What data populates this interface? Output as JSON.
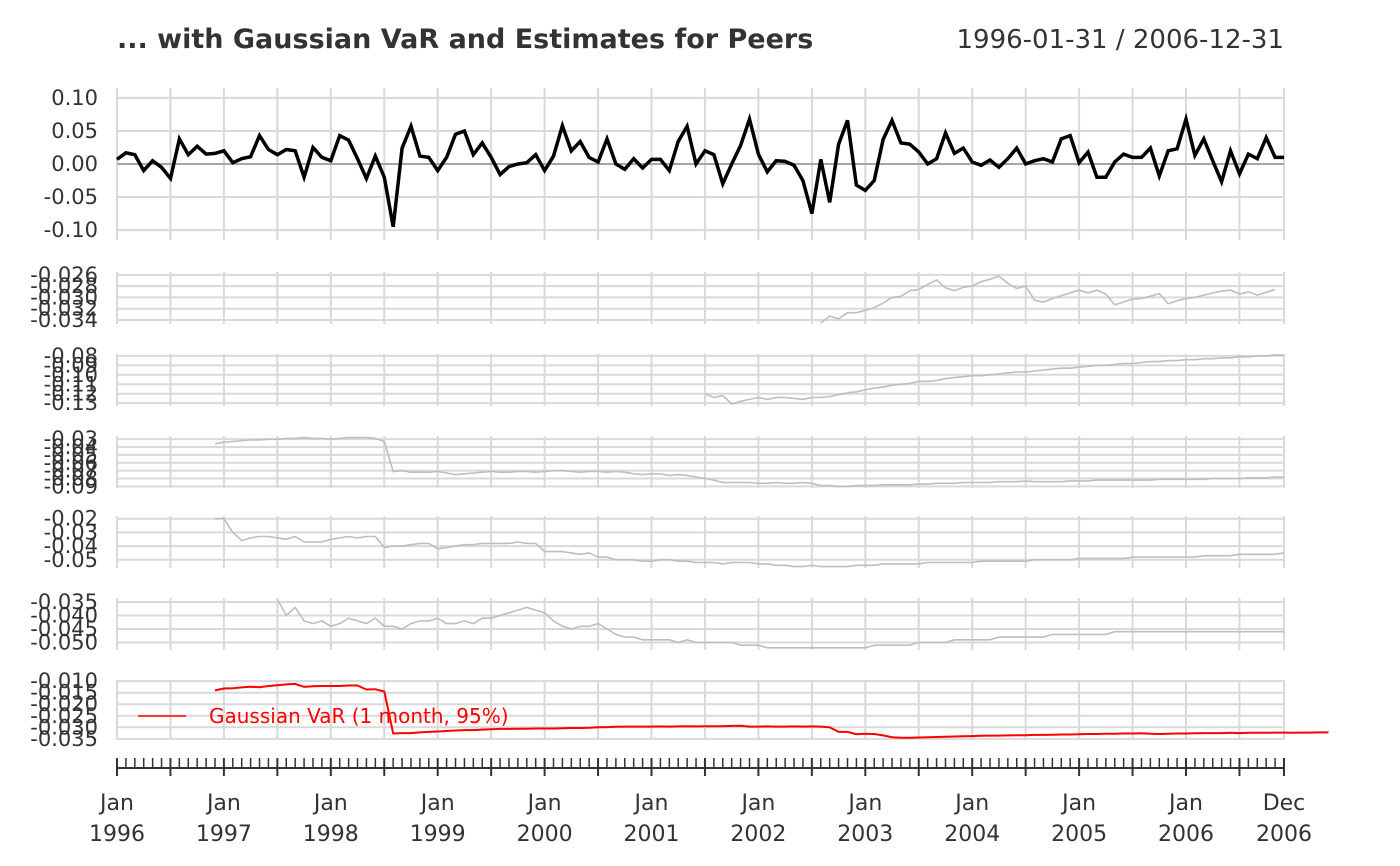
{
  "chart_data": {
    "type": "line",
    "title": "... with Gaussian VaR and Estimates for Peers",
    "date_range": "1996-01-31 / 2006-12-31",
    "x_start": "1996-01",
    "x_end": "2006-12",
    "x_tick_labels": [
      {
        "month": "Jan",
        "year": "1996",
        "index": 0
      },
      {
        "month": "Jan",
        "year": "1997",
        "index": 12
      },
      {
        "month": "Jan",
        "year": "1998",
        "index": 24
      },
      {
        "month": "Jan",
        "year": "1999",
        "index": 36
      },
      {
        "month": "Jan",
        "year": "2000",
        "index": 48
      },
      {
        "month": "Jan",
        "year": "2001",
        "index": 60
      },
      {
        "month": "Jan",
        "year": "2002",
        "index": 72
      },
      {
        "month": "Jan",
        "year": "2003",
        "index": 84
      },
      {
        "month": "Jan",
        "year": "2004",
        "index": 96
      },
      {
        "month": "Jan",
        "year": "2005",
        "index": 108
      },
      {
        "month": "Jan",
        "year": "2006",
        "index": 120
      },
      {
        "month": "Dec",
        "year": "2006",
        "index": 131
      }
    ],
    "grid": true,
    "legend": {
      "position": "left",
      "entries": [
        {
          "label": "Gaussian VaR (1 month, 95%)",
          "color": "#ff0000"
        }
      ]
    },
    "panels": [
      {
        "name": "returns",
        "color": "#000000",
        "ylim": [
          -0.115,
          0.115
        ],
        "yticks": [
          "0.10",
          "0.05",
          "0.00",
          "-0.05",
          "-0.10"
        ],
        "ytick_values": [
          0.1,
          0.05,
          0.0,
          -0.05,
          -0.1
        ],
        "zero_line": true,
        "start_index": 0,
        "values": [
          0.007,
          0.017,
          0.014,
          -0.01,
          0.005,
          -0.005,
          -0.022,
          0.038,
          0.014,
          0.027,
          0.015,
          0.016,
          0.02,
          0.002,
          0.008,
          0.011,
          0.043,
          0.022,
          0.014,
          0.022,
          0.02,
          -0.02,
          0.025,
          0.01,
          0.005,
          0.043,
          0.036,
          0.008,
          -0.022,
          0.012,
          -0.02,
          -0.095,
          0.024,
          0.057,
          0.012,
          0.01,
          -0.01,
          0.01,
          0.045,
          0.05,
          0.014,
          0.032,
          0.01,
          -0.016,
          -0.004,
          0.0,
          0.002,
          0.014,
          -0.01,
          0.012,
          0.058,
          0.02,
          0.034,
          0.01,
          0.003,
          0.038,
          0.0,
          -0.008,
          0.008,
          -0.006,
          0.007,
          0.007,
          -0.01,
          0.034,
          0.057,
          0.0,
          0.02,
          0.014,
          -0.03,
          0.0,
          0.028,
          0.068,
          0.015,
          -0.012,
          0.005,
          0.004,
          -0.002,
          -0.025,
          -0.075,
          0.007,
          -0.058,
          0.03,
          0.066,
          -0.032,
          -0.04,
          -0.025,
          0.037,
          0.066,
          0.032,
          0.03,
          0.018,
          0.0,
          0.008,
          0.047,
          0.016,
          0.024,
          0.003,
          -0.002,
          0.006,
          -0.005,
          0.008,
          0.024,
          0.0,
          0.005,
          0.008,
          0.003,
          0.038,
          0.043,
          0.002,
          0.018,
          -0.02,
          -0.02,
          0.003,
          0.015,
          0.01,
          0.01,
          0.024,
          -0.018,
          0.02,
          0.023,
          0.068,
          0.013,
          0.038,
          0.005,
          -0.027,
          0.02,
          -0.015,
          0.015,
          0.008,
          0.04,
          0.01,
          0.01
        ]
      },
      {
        "name": "peer-1",
        "color": "#bebebe",
        "ylim": [
          -0.0347,
          -0.0255
        ],
        "yticks": [
          "-0.026",
          "-0.028",
          "-0.030",
          "-0.032",
          "-0.034"
        ],
        "ytick_values": [
          -0.026,
          -0.028,
          -0.03,
          -0.032,
          -0.034
        ],
        "start_index": 79,
        "values": [
          -0.0345,
          -0.0333,
          -0.0338,
          -0.0327,
          -0.0327,
          -0.0323,
          -0.0318,
          -0.031,
          -0.03,
          -0.0298,
          -0.0288,
          -0.0286,
          -0.0277,
          -0.0269,
          -0.0283,
          -0.0288,
          -0.0282,
          -0.028,
          -0.0272,
          -0.0268,
          -0.0262,
          -0.0275,
          -0.0284,
          -0.028,
          -0.0305,
          -0.0308,
          -0.0302,
          -0.0297,
          -0.0292,
          -0.0287,
          -0.0292,
          -0.0287,
          -0.0294,
          -0.0313,
          -0.0308,
          -0.0303,
          -0.0302,
          -0.0298,
          -0.0293,
          -0.0311,
          -0.0306,
          -0.0302,
          -0.03,
          -0.0296,
          -0.0292,
          -0.0289,
          -0.0287,
          -0.0294,
          -0.029,
          -0.0296,
          -0.0291,
          -0.0286
        ]
      },
      {
        "name": "peer-2",
        "color": "#bebebe",
        "ylim": [
          -0.133,
          -0.078
        ],
        "yticks": [
          "-0.08",
          "-0.09",
          "-0.10",
          "-0.11",
          "-0.12",
          "-0.13"
        ],
        "ytick_values": [
          -0.08,
          -0.09,
          -0.1,
          -0.11,
          -0.12,
          -0.13
        ],
        "start_index": 66,
        "values": [
          -0.12,
          -0.124,
          -0.122,
          -0.131,
          -0.128,
          -0.126,
          -0.124,
          -0.126,
          -0.124,
          -0.124,
          -0.125,
          -0.126,
          -0.124,
          -0.124,
          -0.123,
          -0.121,
          -0.119,
          -0.118,
          -0.116,
          -0.114,
          -0.113,
          -0.111,
          -0.11,
          -0.109,
          -0.107,
          -0.107,
          -0.106,
          -0.104,
          -0.103,
          -0.102,
          -0.101,
          -0.101,
          -0.1,
          -0.099,
          -0.098,
          -0.097,
          -0.097,
          -0.096,
          -0.095,
          -0.094,
          -0.093,
          -0.093,
          -0.092,
          -0.091,
          -0.09,
          -0.09,
          -0.089,
          -0.088,
          -0.088,
          -0.087,
          -0.086,
          -0.086,
          -0.085,
          -0.085,
          -0.084,
          -0.084,
          -0.083,
          -0.083,
          -0.082,
          -0.082,
          -0.081,
          -0.081,
          -0.08,
          -0.08,
          -0.079,
          -0.079
        ]
      },
      {
        "name": "peer-3",
        "color": "#bebebe",
        "ylim": [
          -0.092,
          -0.026
        ],
        "yticks": [
          "-0.03",
          "-0.04",
          "-0.05",
          "-0.06",
          "-0.07",
          "-0.08",
          "-0.09"
        ],
        "ytick_values": [
          -0.03,
          -0.04,
          -0.05,
          -0.06,
          -0.07,
          -0.08,
          -0.09
        ],
        "start_index": 11,
        "values": [
          -0.036,
          -0.034,
          -0.033,
          -0.032,
          -0.031,
          -0.031,
          -0.03,
          -0.03,
          -0.029,
          -0.029,
          -0.028,
          -0.029,
          -0.029,
          -0.03,
          -0.029,
          -0.028,
          -0.028,
          -0.028,
          -0.029,
          -0.033,
          -0.071,
          -0.07,
          -0.072,
          -0.072,
          -0.072,
          -0.071,
          -0.073,
          -0.075,
          -0.074,
          -0.073,
          -0.072,
          -0.071,
          -0.072,
          -0.072,
          -0.071,
          -0.071,
          -0.072,
          -0.071,
          -0.07,
          -0.07,
          -0.071,
          -0.072,
          -0.071,
          -0.071,
          -0.072,
          -0.071,
          -0.072,
          -0.074,
          -0.075,
          -0.074,
          -0.074,
          -0.076,
          -0.075,
          -0.076,
          -0.078,
          -0.08,
          -0.082,
          -0.085,
          -0.085,
          -0.085,
          -0.085,
          -0.086,
          -0.086,
          -0.085,
          -0.086,
          -0.086,
          -0.085,
          -0.086,
          -0.089,
          -0.089,
          -0.09,
          -0.09,
          -0.089,
          -0.089,
          -0.089,
          -0.088,
          -0.088,
          -0.088,
          -0.088,
          -0.087,
          -0.087,
          -0.086,
          -0.086,
          -0.086,
          -0.085,
          -0.085,
          -0.085,
          -0.085,
          -0.084,
          -0.084,
          -0.084,
          -0.083,
          -0.084,
          -0.084,
          -0.084,
          -0.084,
          -0.083,
          -0.083,
          -0.083,
          -0.082,
          -0.082,
          -0.082,
          -0.082,
          -0.082,
          -0.082,
          -0.082,
          -0.081,
          -0.081,
          -0.081,
          -0.081,
          -0.081,
          -0.081,
          -0.08,
          -0.08,
          -0.08,
          -0.08,
          -0.079,
          -0.079,
          -0.079,
          -0.078,
          -0.078
        ]
      },
      {
        "name": "peer-4",
        "color": "#bebebe",
        "ylim": [
          -0.056,
          -0.018
        ],
        "yticks": [
          "-0.02",
          "-0.03",
          "-0.04",
          "-0.05"
        ],
        "ytick_values": [
          -0.02,
          -0.03,
          -0.04,
          -0.05
        ],
        "start_index": 11,
        "values": [
          -0.02,
          -0.02,
          -0.03,
          -0.036,
          -0.034,
          -0.033,
          -0.033,
          -0.034,
          -0.035,
          -0.033,
          -0.037,
          -0.037,
          -0.037,
          -0.035,
          -0.034,
          -0.033,
          -0.034,
          -0.033,
          -0.033,
          -0.041,
          -0.04,
          -0.04,
          -0.039,
          -0.038,
          -0.038,
          -0.042,
          -0.041,
          -0.04,
          -0.039,
          -0.039,
          -0.038,
          -0.038,
          -0.038,
          -0.038,
          -0.037,
          -0.038,
          -0.038,
          -0.044,
          -0.044,
          -0.044,
          -0.045,
          -0.046,
          -0.045,
          -0.048,
          -0.048,
          -0.05,
          -0.05,
          -0.05,
          -0.051,
          -0.051,
          -0.05,
          -0.05,
          -0.051,
          -0.051,
          -0.052,
          -0.052,
          -0.052,
          -0.053,
          -0.052,
          -0.052,
          -0.052,
          -0.053,
          -0.053,
          -0.054,
          -0.054,
          -0.055,
          -0.055,
          -0.054,
          -0.055,
          -0.055,
          -0.055,
          -0.055,
          -0.054,
          -0.054,
          -0.054,
          -0.053,
          -0.053,
          -0.053,
          -0.053,
          -0.053,
          -0.052,
          -0.052,
          -0.052,
          -0.052,
          -0.052,
          -0.052,
          -0.051,
          -0.051,
          -0.051,
          -0.051,
          -0.051,
          -0.051,
          -0.05,
          -0.05,
          -0.05,
          -0.05,
          -0.05,
          -0.049,
          -0.049,
          -0.049,
          -0.049,
          -0.049,
          -0.049,
          -0.048,
          -0.048,
          -0.048,
          -0.048,
          -0.048,
          -0.048,
          -0.048,
          -0.048,
          -0.047,
          -0.047,
          -0.047,
          -0.047,
          -0.046,
          -0.046,
          -0.046,
          -0.046,
          -0.046,
          -0.045
        ]
      },
      {
        "name": "peer-5",
        "color": "#bebebe",
        "ylim": [
          -0.0528,
          -0.0335
        ],
        "yticks": [
          "-0.035",
          "-0.040",
          "-0.045",
          "-0.050"
        ],
        "ytick_values": [
          -0.035,
          -0.04,
          -0.045,
          -0.05
        ],
        "start_index": 18,
        "values": [
          -0.034,
          -0.04,
          -0.037,
          -0.042,
          -0.043,
          -0.042,
          -0.044,
          -0.043,
          -0.041,
          -0.042,
          -0.043,
          -0.041,
          -0.044,
          -0.044,
          -0.045,
          -0.043,
          -0.042,
          -0.042,
          -0.041,
          -0.043,
          -0.043,
          -0.042,
          -0.043,
          -0.041,
          -0.041,
          -0.04,
          -0.039,
          -0.038,
          -0.037,
          -0.038,
          -0.039,
          -0.042,
          -0.044,
          -0.045,
          -0.044,
          -0.044,
          -0.043,
          -0.045,
          -0.047,
          -0.048,
          -0.048,
          -0.049,
          -0.049,
          -0.049,
          -0.049,
          -0.05,
          -0.049,
          -0.05,
          -0.05,
          -0.05,
          -0.05,
          -0.05,
          -0.051,
          -0.051,
          -0.051,
          -0.052,
          -0.052,
          -0.052,
          -0.052,
          -0.052,
          -0.052,
          -0.052,
          -0.052,
          -0.052,
          -0.052,
          -0.052,
          -0.052,
          -0.051,
          -0.051,
          -0.051,
          -0.051,
          -0.051,
          -0.05,
          -0.05,
          -0.05,
          -0.05,
          -0.049,
          -0.049,
          -0.049,
          -0.049,
          -0.049,
          -0.048,
          -0.048,
          -0.048,
          -0.048,
          -0.048,
          -0.048,
          -0.047,
          -0.047,
          -0.047,
          -0.047,
          -0.047,
          -0.047,
          -0.047,
          -0.046,
          -0.046,
          -0.046,
          -0.046,
          -0.046,
          -0.046,
          -0.046,
          -0.046,
          -0.046,
          -0.046,
          -0.046,
          -0.046,
          -0.046,
          -0.046,
          -0.046,
          -0.046,
          -0.046,
          -0.046,
          -0.046,
          -0.046
        ]
      },
      {
        "name": "gaussian-var",
        "color": "#ff0000",
        "ylim": [
          -0.0355,
          -0.0095
        ],
        "yticks": [
          "-0.010",
          "-0.015",
          "-0.020",
          "-0.025",
          "-0.030",
          "-0.035"
        ],
        "ytick_values": [
          -0.01,
          -0.015,
          -0.02,
          -0.025,
          -0.03,
          -0.035
        ],
        "start_index": 11,
        "values": [
          -0.014,
          -0.0132,
          -0.0131,
          -0.0127,
          -0.0124,
          -0.0126,
          -0.0121,
          -0.0118,
          -0.0114,
          -0.0112,
          -0.0125,
          -0.0122,
          -0.0121,
          -0.0121,
          -0.0121,
          -0.0119,
          -0.0119,
          -0.0136,
          -0.0135,
          -0.0145,
          -0.0327,
          -0.0325,
          -0.0325,
          -0.0322,
          -0.032,
          -0.0318,
          -0.0316,
          -0.0314,
          -0.0312,
          -0.0312,
          -0.031,
          -0.0308,
          -0.0307,
          -0.0307,
          -0.0306,
          -0.0306,
          -0.0305,
          -0.0305,
          -0.0305,
          -0.0304,
          -0.0303,
          -0.0303,
          -0.0302,
          -0.03,
          -0.0299,
          -0.0298,
          -0.0297,
          -0.0297,
          -0.0297,
          -0.0297,
          -0.0296,
          -0.0297,
          -0.0296,
          -0.0295,
          -0.0296,
          -0.0295,
          -0.0295,
          -0.0295,
          -0.0294,
          -0.0293,
          -0.0297,
          -0.0297,
          -0.0296,
          -0.0297,
          -0.0297,
          -0.0296,
          -0.0297,
          -0.0296,
          -0.0297,
          -0.03,
          -0.032,
          -0.032,
          -0.033,
          -0.0328,
          -0.0329,
          -0.0335,
          -0.0343,
          -0.0345,
          -0.0345,
          -0.0344,
          -0.0343,
          -0.0342,
          -0.0341,
          -0.034,
          -0.0339,
          -0.0338,
          -0.0337,
          -0.0336,
          -0.0336,
          -0.0335,
          -0.0334,
          -0.0334,
          -0.0333,
          -0.0333,
          -0.0332,
          -0.0331,
          -0.0331,
          -0.033,
          -0.0329,
          -0.0329,
          -0.0328,
          -0.0328,
          -0.0327,
          -0.0327,
          -0.0326,
          -0.0328,
          -0.0329,
          -0.0328,
          -0.0327,
          -0.0327,
          -0.0326,
          -0.0325,
          -0.0325,
          -0.0325,
          -0.0324,
          -0.0325,
          -0.0324,
          -0.0324,
          -0.0324,
          -0.0323,
          -0.0323,
          -0.0324,
          -0.0323,
          -0.0323,
          -0.0322,
          -0.0322
        ]
      }
    ]
  }
}
